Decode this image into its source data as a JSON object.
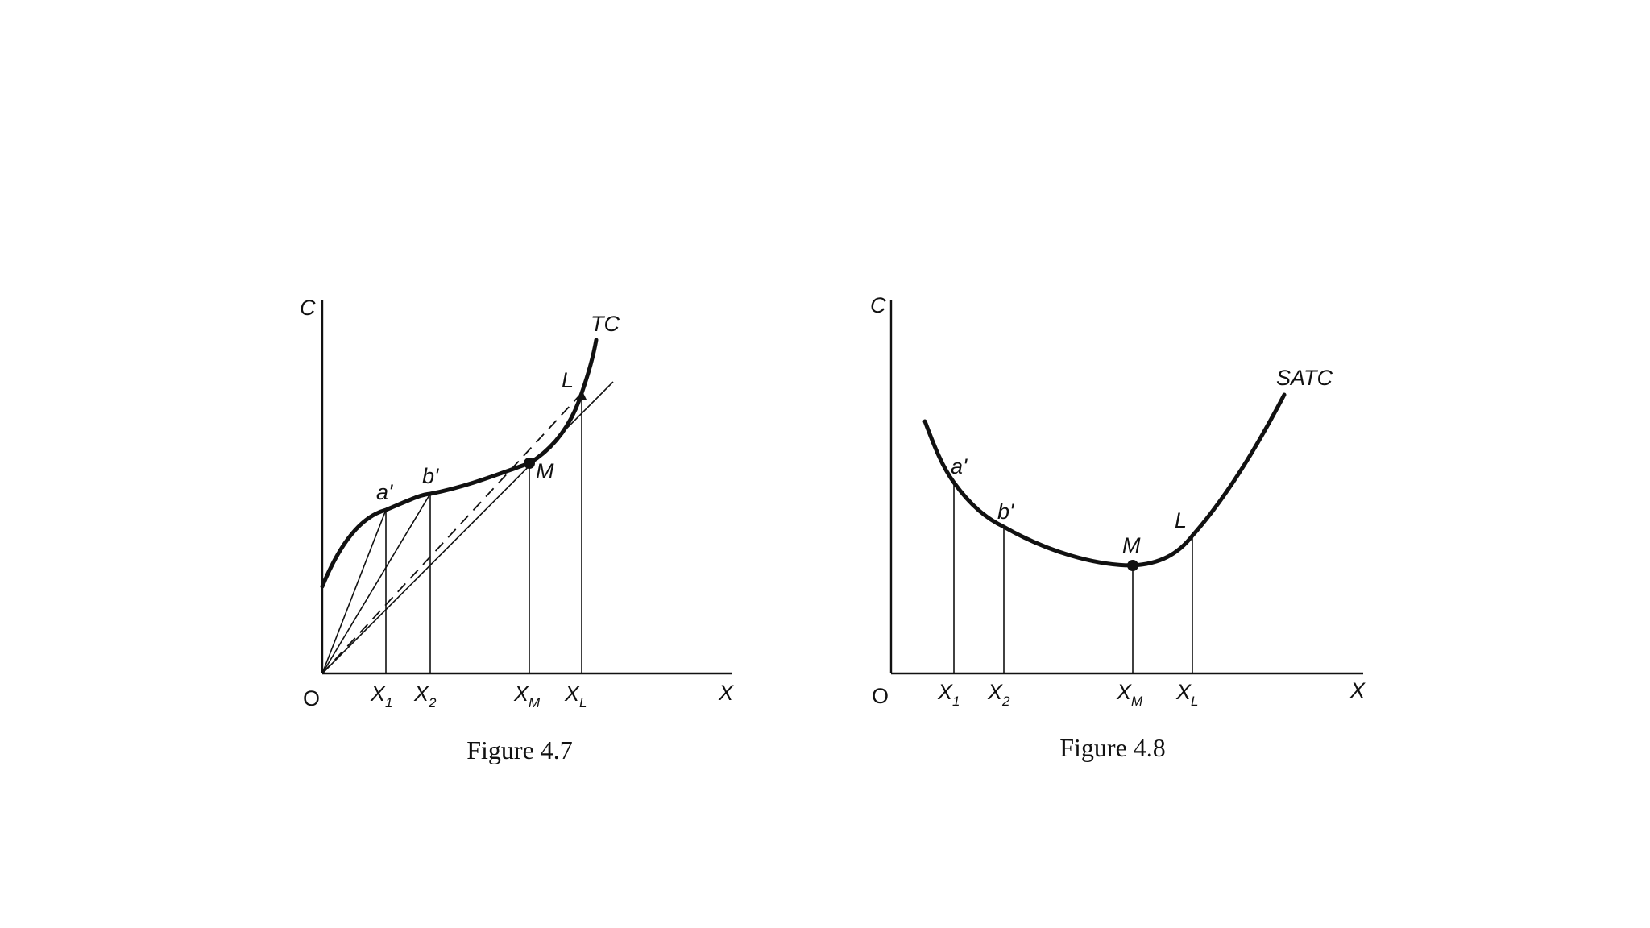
{
  "figure_47": {
    "caption": "Figure 4.7",
    "y_axis": "C",
    "x_axis": "X",
    "origin": "O",
    "curve_label": "TC",
    "points": {
      "a": "a'",
      "b": "b'",
      "m": "M",
      "l": "L"
    },
    "ticks": {
      "x1": "X",
      "x1_sub": "1",
      "x2": "X",
      "x2_sub": "2",
      "xm": "X",
      "xm_sub": "M",
      "xl": "X",
      "xl_sub": "L"
    }
  },
  "figure_48": {
    "caption": "Figure 4.8",
    "y_axis": "C",
    "x_axis": "X",
    "origin": "O",
    "curve_label": "SATC",
    "points": {
      "a": "a'",
      "b": "b'",
      "m": "M",
      "l": "L"
    },
    "ticks": {
      "x1": "X",
      "x1_sub": "1",
      "x2": "X",
      "x2_sub": "2",
      "xm": "X",
      "xm_sub": "M",
      "xl": "X",
      "xl_sub": "L"
    }
  }
}
